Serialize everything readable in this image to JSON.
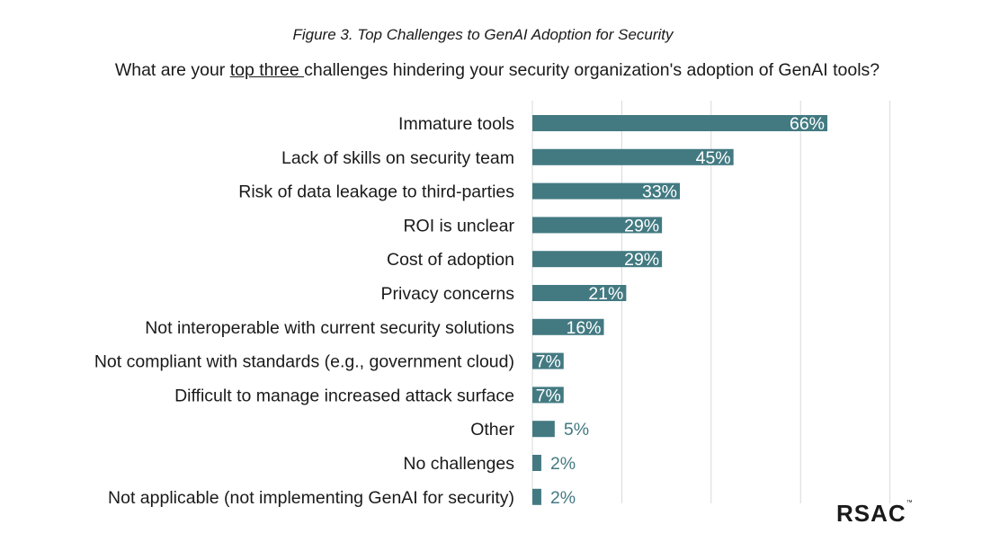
{
  "figure_caption": "Figure 3. Top Challenges to GenAI Adoption for Security",
  "question": {
    "before": "What are your ",
    "underlined": "top three ",
    "after": "challenges hindering your security organization's adoption of GenAI tools?"
  },
  "logo": {
    "text": "RSAC",
    "mark": "™"
  },
  "colors": {
    "bar": "#437a82",
    "label_inside": "#ffffff",
    "label_outside": "#437a82",
    "grid": "#d9d9d9"
  },
  "chart_data": {
    "type": "bar",
    "orientation": "horizontal",
    "title": "Figure 3. Top Challenges to GenAI Adoption for Security",
    "categories": [
      "Immature tools",
      "Lack of skills on security team",
      "Risk of data leakage to third-parties",
      "ROI is unclear",
      "Cost of adoption",
      "Privacy concerns",
      "Not interoperable with current security solutions",
      "Not compliant with standards (e.g., government cloud)",
      "Difficult to manage increased attack surface",
      "Other",
      "No challenges",
      "Not applicable (not implementing GenAI for security)"
    ],
    "values": [
      66,
      45,
      33,
      29,
      29,
      21,
      16,
      7,
      7,
      5,
      2,
      2
    ],
    "value_labels": [
      "66%",
      "45%",
      "33%",
      "29%",
      "29%",
      "21%",
      "16%",
      "7%",
      "7%",
      "5%",
      "2%",
      "2%"
    ],
    "xlim": [
      0,
      80
    ],
    "grid": true,
    "legend": "none"
  }
}
